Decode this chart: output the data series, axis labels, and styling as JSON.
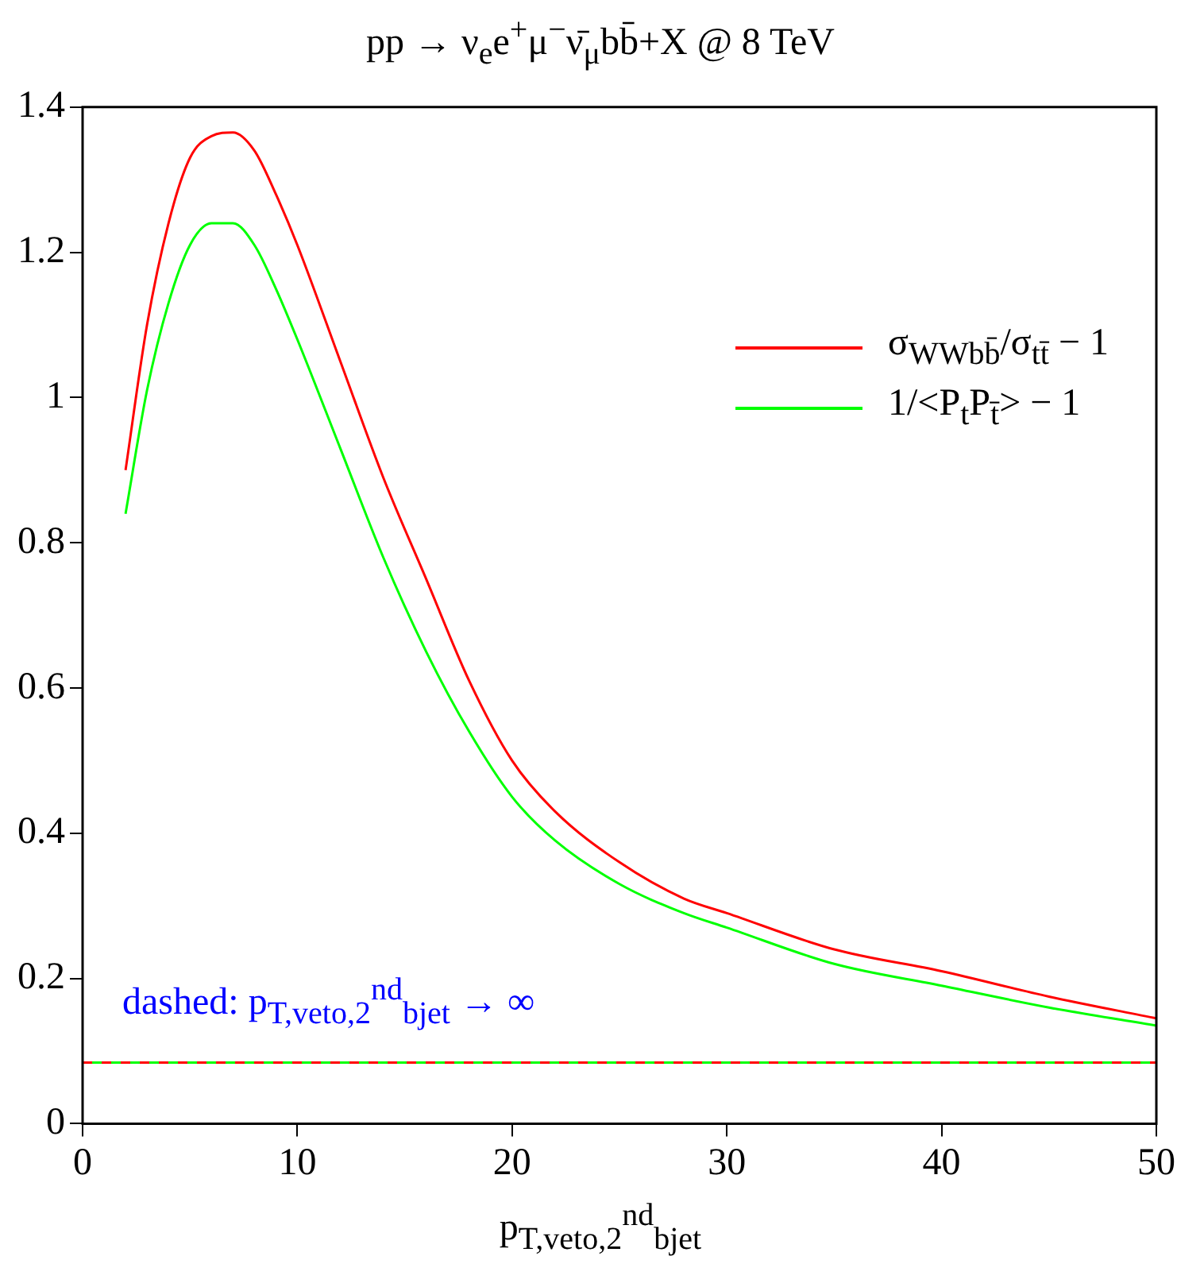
{
  "chart_data": {
    "type": "line",
    "title": "pp → ν$_{e}$e$^{+}$μ$^{−}$ν̄$_{μ}$bb̄+X @ 8 TeV",
    "xlabel": "p$_{T,veto,2}$$^{nd}$$_{bjet}$",
    "annotations": [
      "dashed: p$_{T,veto,2}$$^{nd}$$_{bjet}$ → ∞"
    ],
    "xlim": [
      0,
      50
    ],
    "xticks": [
      0,
      10,
      20,
      30,
      40,
      50
    ],
    "ylim": [
      0,
      1.4
    ],
    "yticks": [
      0,
      0.2,
      0.4,
      0.6,
      0.8,
      1,
      1.2,
      1.4
    ],
    "grid": false,
    "legend": "top right",
    "marker": "none",
    "series": [
      {
        "name": "σ$_{WWbb̄}$/σ$_{tt̄}$ − 1",
        "color": "#ff0000",
        "line_style": "solid",
        "x": [
          2,
          3,
          4,
          5,
          6,
          7,
          8,
          9,
          10,
          12,
          14,
          16,
          18,
          20,
          22,
          25,
          28,
          30,
          35,
          40,
          45,
          50
        ],
        "values": [
          0.9,
          1.1,
          1.24,
          1.33,
          1.36,
          1.365,
          1.34,
          1.28,
          1.21,
          1.05,
          0.89,
          0.75,
          0.61,
          0.5,
          0.43,
          0.36,
          0.31,
          0.29,
          0.24,
          0.21,
          0.175,
          0.145
        ]
      },
      {
        "name": "1/<P$_{t}$P$_{t̄}$> − 1",
        "color": "#00ff00",
        "line_style": "solid",
        "x": [
          2,
          3,
          4,
          5,
          6,
          7,
          8,
          9,
          10,
          12,
          14,
          16,
          18,
          20,
          22,
          25,
          28,
          30,
          35,
          40,
          45,
          50
        ],
        "values": [
          0.84,
          1.01,
          1.13,
          1.21,
          1.24,
          1.24,
          1.21,
          1.15,
          1.08,
          0.93,
          0.78,
          0.65,
          0.54,
          0.45,
          0.39,
          0.33,
          0.29,
          0.27,
          0.22,
          0.19,
          0.16,
          0.135
        ]
      },
      {
        "color": "#ff0000",
        "line_style": "dashed",
        "x": [
          0,
          50
        ],
        "values": [
          0.084,
          0.084
        ]
      },
      {
        "color": "#00ff00",
        "line_style": "dashed",
        "x": [
          0,
          50
        ],
        "values": [
          0.084,
          0.084
        ]
      }
    ]
  }
}
